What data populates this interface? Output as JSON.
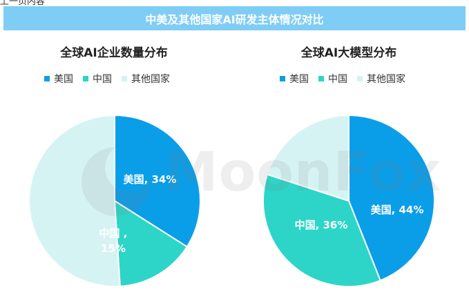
{
  "header": {
    "title": "中美及其他国家AI研发主体情况对比"
  },
  "colors": {
    "us": "#0b9ee8",
    "china": "#2dd5c8",
    "other": "#d6f3f4",
    "banner": "#7fcdf5"
  },
  "chart_data": [
    {
      "type": "pie",
      "title": "全球AI企业数量分布",
      "legend": [
        "美国",
        "中国",
        "其他国家"
      ],
      "slices": [
        {
          "label": "美国",
          "value": 34,
          "value_label": "34%",
          "color": "#0b9ee8",
          "show_label": true
        },
        {
          "label": "中国",
          "value": 15,
          "value_label": "15%",
          "color": "#2dd5c8",
          "show_label": true
        },
        {
          "label": "其他国家",
          "value": 51,
          "value_label": "",
          "color": "#d6f3f4",
          "show_label": false
        }
      ]
    },
    {
      "type": "pie",
      "title": "全球AI大模型分布",
      "legend": [
        "美国",
        "中国",
        "其他国家"
      ],
      "slices": [
        {
          "label": "美国",
          "value": 44,
          "value_label": "44%",
          "color": "#0b9ee8",
          "show_label": true
        },
        {
          "label": "中国",
          "value": 36,
          "value_label": "36%",
          "color": "#2dd5c8",
          "show_label": true
        },
        {
          "label": "其他国家",
          "value": 20,
          "value_label": "",
          "color": "#d6f3f4",
          "show_label": false
        }
      ]
    }
  ],
  "watermark": {
    "text": "MoonFox"
  }
}
